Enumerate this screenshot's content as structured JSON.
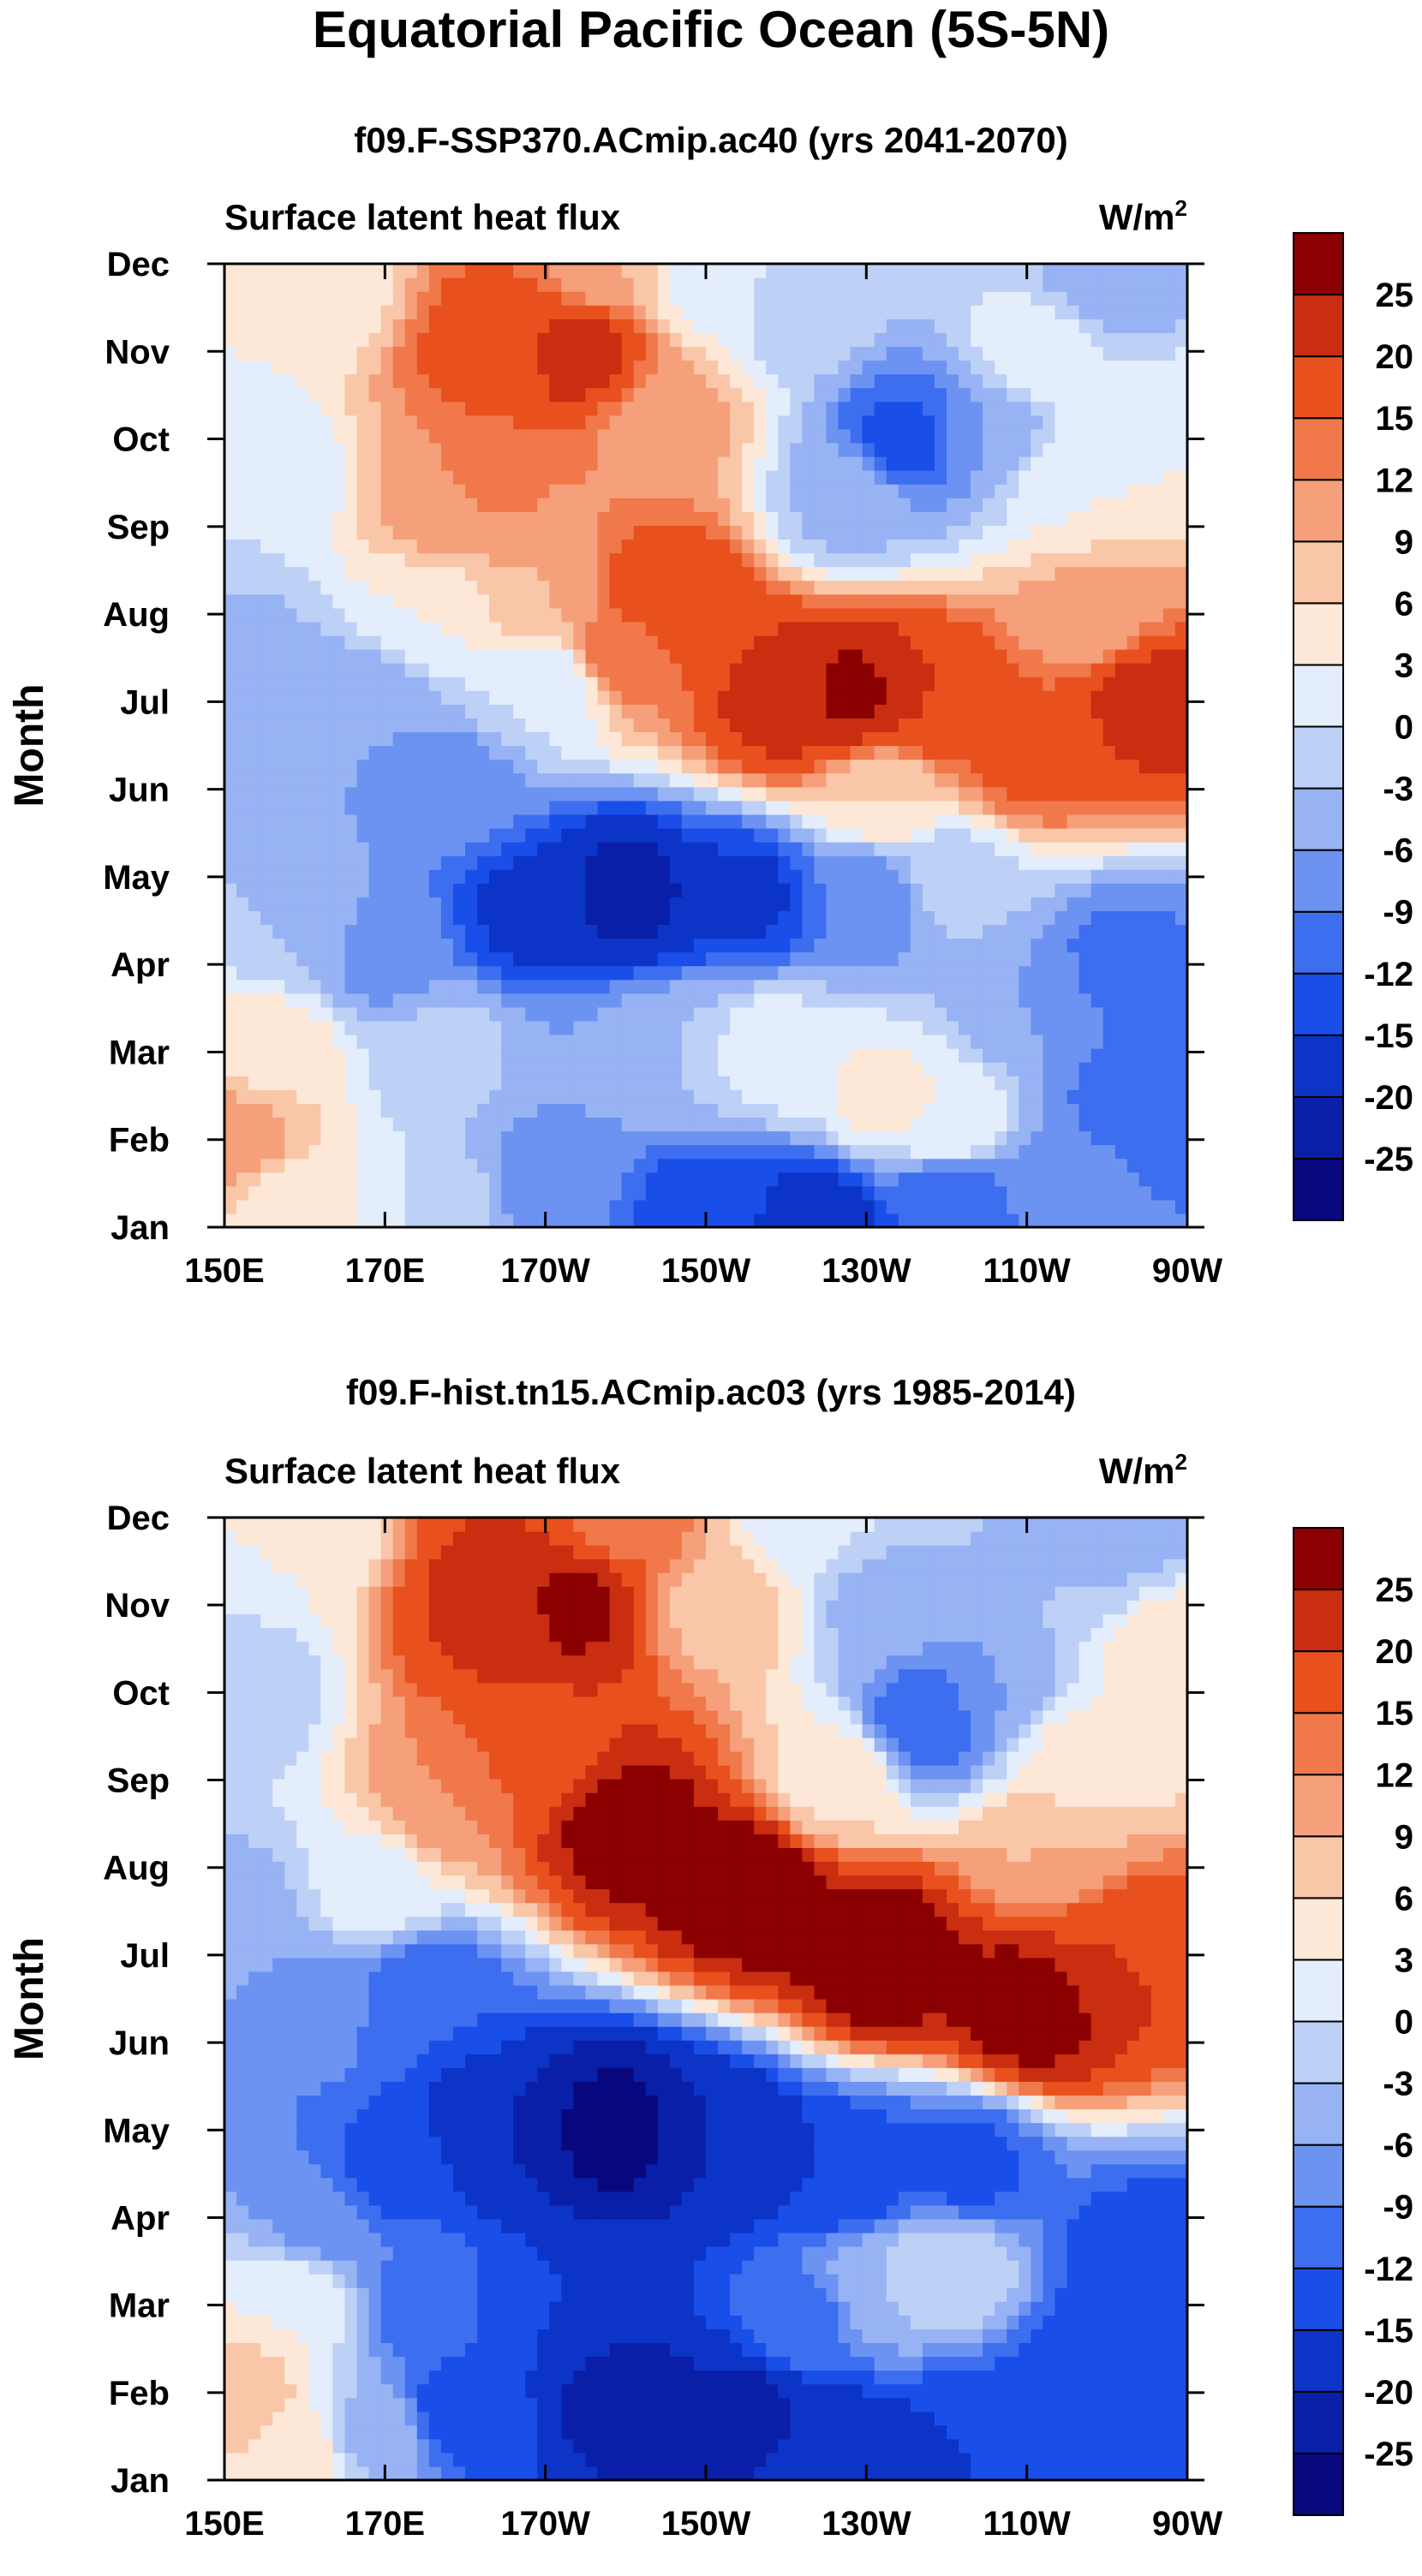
{
  "figure": {
    "title": "Equatorial Pacific Ocean (5S-5N)"
  },
  "chart_data": [
    {
      "type": "heatmap",
      "subtitle": "f09.F-SSP370.ACmip.ac40 (yrs 2041-2070)",
      "variable": "Surface latent heat flux",
      "units": "W/m2",
      "units_base": "W/m",
      "units_exp": "2",
      "ylabel": "Month",
      "xlabel": "",
      "x_ticks": [
        "150E",
        "170E",
        "170W",
        "150W",
        "130W",
        "110W",
        "90W"
      ],
      "y_ticks": [
        "Jan",
        "Feb",
        "Mar",
        "Apr",
        "May",
        "Jun",
        "Jul",
        "Aug",
        "Sep",
        "Oct",
        "Nov",
        "Dec"
      ],
      "xlim": [
        150,
        270
      ],
      "ylim": [
        1,
        12
      ],
      "grid": false,
      "legend": "right",
      "colorbar": {
        "labels": [
          "25",
          "20",
          "15",
          "12",
          "9",
          "6",
          "3",
          "0",
          "-3",
          "-6",
          "-9",
          "-12",
          "-15",
          "-20",
          "-25"
        ],
        "levels": [
          -25,
          -20,
          -15,
          -12,
          -9,
          -6,
          -3,
          0,
          3,
          6,
          9,
          12,
          15,
          20,
          25
        ],
        "colors": [
          "#08087e",
          "#0a1fa8",
          "#0c35c8",
          "#1a4ee8",
          "#3d6ef0",
          "#6d93f2",
          "#97b3f4",
          "#bdd0f6",
          "#e3edfb",
          "#fde7d7",
          "#f9c6a8",
          "#f5a07a",
          "#f0784a",
          "#e8501e",
          "#c92e10",
          "#8b0000"
        ]
      },
      "anchors": [
        {
          "lon": 158,
          "mon": 1.3,
          "val": 5
        },
        {
          "lon": 152,
          "mon": 2.0,
          "val": 11
        },
        {
          "lon": 156,
          "mon": 3.0,
          "val": 5
        },
        {
          "lon": 166,
          "mon": 1.2,
          "val": 3
        },
        {
          "lon": 178,
          "mon": 1.3,
          "val": -2
        },
        {
          "lon": 190,
          "mon": 1.5,
          "val": -8
        },
        {
          "lon": 210,
          "mon": 1.2,
          "val": -14
        },
        {
          "lon": 224,
          "mon": 1.1,
          "val": -17
        },
        {
          "lon": 240,
          "mon": 1.3,
          "val": -12
        },
        {
          "lon": 255,
          "mon": 1.5,
          "val": -8
        },
        {
          "lon": 265,
          "mon": 2.5,
          "val": -12
        },
        {
          "lon": 262,
          "mon": 4.0,
          "val": -10
        },
        {
          "lon": 250,
          "mon": 3.5,
          "val": -6
        },
        {
          "lon": 232,
          "mon": 2.5,
          "val": 4
        },
        {
          "lon": 240,
          "mon": 2.2,
          "val": 3
        },
        {
          "lon": 205,
          "mon": 3.0,
          "val": -3
        },
        {
          "lon": 218,
          "mon": 3.0,
          "val": 2
        },
        {
          "lon": 195,
          "mon": 2.8,
          "val": -6
        },
        {
          "lon": 178,
          "mon": 3.0,
          "val": -2
        },
        {
          "lon": 160,
          "mon": 4.5,
          "val": -3
        },
        {
          "lon": 170,
          "mon": 4.2,
          "val": -8
        },
        {
          "lon": 178,
          "mon": 6.0,
          "val": -8
        },
        {
          "lon": 188,
          "mon": 4.6,
          "val": -16
        },
        {
          "lon": 200,
          "mon": 4.8,
          "val": -22
        },
        {
          "lon": 215,
          "mon": 4.8,
          "val": -16
        },
        {
          "lon": 230,
          "mon": 4.8,
          "val": -9
        },
        {
          "lon": 240,
          "mon": 5.0,
          "val": -2
        },
        {
          "lon": 168,
          "mon": 7.0,
          "val": -6
        },
        {
          "lon": 153,
          "mon": 7.5,
          "val": -4
        },
        {
          "lon": 155,
          "mon": 9.5,
          "val": 0
        },
        {
          "lon": 160,
          "mon": 11.8,
          "val": 3
        },
        {
          "lon": 175,
          "mon": 8.0,
          "val": 3
        },
        {
          "lon": 190,
          "mon": 7.2,
          "val": 0
        },
        {
          "lon": 190,
          "mon": 8.3,
          "val": 9
        },
        {
          "lon": 178,
          "mon": 9.2,
          "val": 10
        },
        {
          "lon": 200,
          "mon": 7.6,
          "val": 14
        },
        {
          "lon": 205,
          "mon": 8.2,
          "val": 20
        },
        {
          "lon": 220,
          "mon": 7.0,
          "val": 22
        },
        {
          "lon": 228,
          "mon": 7.1,
          "val": 26
        },
        {
          "lon": 238,
          "mon": 7.0,
          "val": 20
        },
        {
          "lon": 250,
          "mon": 6.4,
          "val": 16
        },
        {
          "lon": 265,
          "mon": 7.0,
          "val": 22
        },
        {
          "lon": 258,
          "mon": 8.0,
          "val": 10
        },
        {
          "lon": 255,
          "mon": 9.5,
          "val": 3
        },
        {
          "lon": 232,
          "mon": 5.9,
          "val": 6
        },
        {
          "lon": 185,
          "mon": 11.0,
          "val": 18
        },
        {
          "lon": 194,
          "mon": 11.0,
          "val": 22
        },
        {
          "lon": 182,
          "mon": 9.5,
          "val": 13
        },
        {
          "lon": 205,
          "mon": 10.2,
          "val": 10
        },
        {
          "lon": 198,
          "mon": 12.0,
          "val": 9
        },
        {
          "lon": 210,
          "mon": 11.8,
          "val": 2
        },
        {
          "lon": 222,
          "mon": 11.5,
          "val": -2
        },
        {
          "lon": 235,
          "mon": 10.0,
          "val": -13
        },
        {
          "lon": 245,
          "mon": 10.0,
          "val": -6
        },
        {
          "lon": 228,
          "mon": 9.3,
          "val": -4
        },
        {
          "lon": 252,
          "mon": 11.0,
          "val": 2
        },
        {
          "lon": 260,
          "mon": 11.8,
          "val": -5
        },
        {
          "lon": 268,
          "mon": 10.0,
          "val": 3
        }
      ]
    },
    {
      "type": "heatmap",
      "subtitle": "f09.F-hist.tn15.ACmip.ac03 (yrs 1985-2014)",
      "variable": "Surface latent heat flux",
      "units": "W/m2",
      "units_base": "W/m",
      "units_exp": "2",
      "ylabel": "Month",
      "xlabel": "",
      "x_ticks": [
        "150E",
        "170E",
        "170W",
        "150W",
        "130W",
        "110W",
        "90W"
      ],
      "y_ticks": [
        "Jan",
        "Feb",
        "Mar",
        "Apr",
        "May",
        "Jun",
        "Jul",
        "Aug",
        "Sep",
        "Oct",
        "Nov",
        "Dec"
      ],
      "xlim": [
        150,
        270
      ],
      "ylim": [
        1,
        12
      ],
      "grid": false,
      "legend": "right",
      "colorbar": {
        "labels": [
          "25",
          "20",
          "15",
          "12",
          "9",
          "6",
          "3",
          "0",
          "-3",
          "-6",
          "-9",
          "-12",
          "-15",
          "-20",
          "-25"
        ],
        "levels": [
          -25,
          -20,
          -15,
          -12,
          -9,
          -6,
          -3,
          0,
          3,
          6,
          9,
          12,
          15,
          20,
          25
        ],
        "colors": [
          "#08087e",
          "#0a1fa8",
          "#0c35c8",
          "#1a4ee8",
          "#3d6ef0",
          "#6d93f2",
          "#97b3f4",
          "#bdd0f6",
          "#e3edfb",
          "#fde7d7",
          "#f9c6a8",
          "#f5a07a",
          "#f0784a",
          "#e8501e",
          "#c92e10",
          "#8b0000"
        ]
      },
      "anchors": [
        {
          "lon": 152,
          "mon": 2.0,
          "val": 8
        },
        {
          "lon": 160,
          "mon": 1.3,
          "val": 5
        },
        {
          "lon": 158,
          "mon": 3.0,
          "val": 3
        },
        {
          "lon": 168,
          "mon": 1.5,
          "val": -4
        },
        {
          "lon": 180,
          "mon": 1.8,
          "val": -14
        },
        {
          "lon": 200,
          "mon": 1.9,
          "val": -22
        },
        {
          "lon": 215,
          "mon": 1.8,
          "val": -21
        },
        {
          "lon": 228,
          "mon": 1.3,
          "val": -18
        },
        {
          "lon": 242,
          "mon": 1.5,
          "val": -15
        },
        {
          "lon": 258,
          "mon": 2.2,
          "val": -15
        },
        {
          "lon": 264,
          "mon": 3.5,
          "val": -14
        },
        {
          "lon": 232,
          "mon": 3.2,
          "val": -3
        },
        {
          "lon": 240,
          "mon": 3.4,
          "val": 0
        },
        {
          "lon": 222,
          "mon": 2.8,
          "val": -10
        },
        {
          "lon": 190,
          "mon": 3.0,
          "val": -15
        },
        {
          "lon": 175,
          "mon": 3.0,
          "val": -10
        },
        {
          "lon": 162,
          "mon": 4.0,
          "val": -7
        },
        {
          "lon": 170,
          "mon": 4.5,
          "val": -13
        },
        {
          "lon": 185,
          "mon": 5.0,
          "val": -20
        },
        {
          "lon": 198,
          "mon": 5.0,
          "val": -27
        },
        {
          "lon": 212,
          "mon": 4.8,
          "val": -20
        },
        {
          "lon": 228,
          "mon": 4.5,
          "val": -15
        },
        {
          "lon": 242,
          "mon": 4.6,
          "val": -13
        },
        {
          "lon": 175,
          "mon": 6.5,
          "val": -12
        },
        {
          "lon": 160,
          "mon": 6.5,
          "val": -7
        },
        {
          "lon": 153,
          "mon": 7.5,
          "val": -4
        },
        {
          "lon": 152,
          "mon": 10.0,
          "val": -2
        },
        {
          "lon": 158,
          "mon": 11.8,
          "val": 3
        },
        {
          "lon": 168,
          "mon": 7.8,
          "val": 2
        },
        {
          "lon": 178,
          "mon": 8.8,
          "val": 12
        },
        {
          "lon": 190,
          "mon": 9.3,
          "val": 18
        },
        {
          "lon": 200,
          "mon": 8.5,
          "val": 28
        },
        {
          "lon": 215,
          "mon": 7.8,
          "val": 30
        },
        {
          "lon": 232,
          "mon": 7.0,
          "val": 30
        },
        {
          "lon": 250,
          "mon": 6.4,
          "val": 28
        },
        {
          "lon": 262,
          "mon": 7.0,
          "val": 20
        },
        {
          "lon": 252,
          "mon": 8.2,
          "val": 9
        },
        {
          "lon": 256,
          "mon": 9.3,
          "val": 4
        },
        {
          "lon": 268,
          "mon": 10.5,
          "val": 6
        },
        {
          "lon": 185,
          "mon": 11.0,
          "val": 22
        },
        {
          "lon": 193,
          "mon": 11.0,
          "val": 26
        },
        {
          "lon": 200,
          "mon": 12.0,
          "val": 14
        },
        {
          "lon": 212,
          "mon": 11.0,
          "val": 8
        },
        {
          "lon": 222,
          "mon": 12.0,
          "val": 1
        },
        {
          "lon": 232,
          "mon": 11.0,
          "val": -4
        },
        {
          "lon": 238,
          "mon": 9.7,
          "val": -12
        },
        {
          "lon": 246,
          "mon": 10.0,
          "val": -6
        },
        {
          "lon": 226,
          "mon": 9.0,
          "val": 5
        },
        {
          "lon": 258,
          "mon": 11.5,
          "val": -3
        },
        {
          "lon": 262,
          "mon": 12.0,
          "val": -6
        }
      ]
    }
  ]
}
